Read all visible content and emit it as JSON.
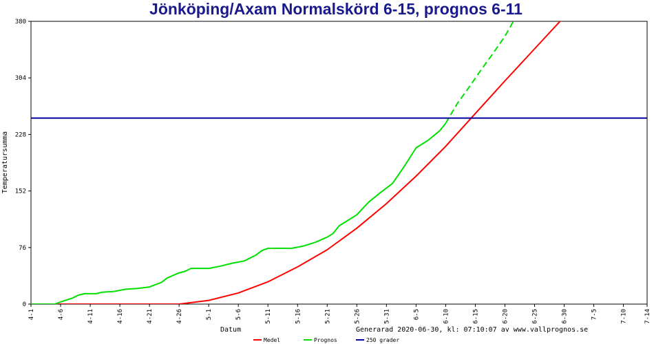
{
  "chart_data": {
    "type": "line",
    "title": "Jönköping/Axam Normalskörd 6-15, prognos 6-11",
    "xlabel": "Datum",
    "ylabel": "Temperatursumma",
    "footer_text": "Generarad 2020-06-30, kl: 07:10:07 av www.vallprognos.se",
    "ylim": [
      0,
      380
    ],
    "yticks": [
      0,
      76,
      152,
      228,
      304,
      380
    ],
    "x_start": "4-1",
    "x_end": "7-14",
    "xticks": [
      "4-1",
      "4-6",
      "4-11",
      "4-16",
      "4-21",
      "4-26",
      "5-1",
      "5-6",
      "5-11",
      "5-16",
      "5-21",
      "5-26",
      "5-31",
      "6-5",
      "6-10",
      "6-15",
      "6-20",
      "6-25",
      "6-30",
      "7-5",
      "7-10",
      "7-14"
    ],
    "grid": false,
    "legend_position": "bottom",
    "series": [
      {
        "name": "Medel",
        "color": "#ff0000",
        "style": "solid",
        "x": [
          "4-1",
          "4-26",
          "5-1",
          "5-6",
          "5-11",
          "5-16",
          "5-21",
          "5-26",
          "5-31",
          "6-5",
          "6-10",
          "6-15",
          "6-20",
          "6-25",
          "6-30",
          "7-2"
        ],
        "y": [
          0,
          0,
          5,
          15,
          30,
          50,
          73,
          102,
          135,
          172,
          212,
          256,
          300,
          343,
          386,
          406
        ]
      },
      {
        "name": "Prognos",
        "color": "#00e000",
        "style": "solid",
        "x": [
          "4-1",
          "4-5",
          "4-6",
          "4-8",
          "4-9",
          "4-10",
          "4-12",
          "4-13",
          "4-15",
          "4-17",
          "4-19",
          "4-21",
          "4-23",
          "4-24",
          "4-26",
          "4-27",
          "4-28",
          "5-1",
          "5-3",
          "5-5",
          "5-7",
          "5-9",
          "5-10",
          "5-11",
          "5-13",
          "5-15",
          "5-17",
          "5-19",
          "5-21",
          "5-22",
          "5-23",
          "5-25",
          "5-26",
          "5-28",
          "5-30",
          "6-1",
          "6-3",
          "6-5",
          "6-7",
          "6-9",
          "6-10"
        ],
        "y": [
          0,
          0,
          3,
          8,
          12,
          14,
          14,
          16,
          17,
          20,
          21,
          23,
          29,
          35,
          42,
          44,
          48,
          48,
          51,
          55,
          58,
          66,
          72,
          75,
          75,
          75,
          78,
          83,
          90,
          95,
          105,
          115,
          120,
          137,
          150,
          162,
          185,
          210,
          220,
          233,
          243
        ]
      },
      {
        "name": "Prognos",
        "color": "#00e000",
        "style": "dashed",
        "x": [
          "6-10",
          "6-12",
          "6-14",
          "6-16",
          "6-18",
          "6-20",
          "6-22",
          "6-23"
        ],
        "y": [
          243,
          270,
          292,
          315,
          337,
          360,
          388,
          395
        ]
      },
      {
        "name": "250 grader",
        "color": "#0000a0",
        "style": "solid",
        "x": [
          "4-1",
          "7-14"
        ],
        "y": [
          250,
          250
        ]
      }
    ],
    "legend": [
      {
        "label": "Medel",
        "color": "#ff0000"
      },
      {
        "label": "Prognos",
        "color": "#00e000"
      },
      {
        "label": "250 grader",
        "color": "#0000a0"
      }
    ]
  }
}
